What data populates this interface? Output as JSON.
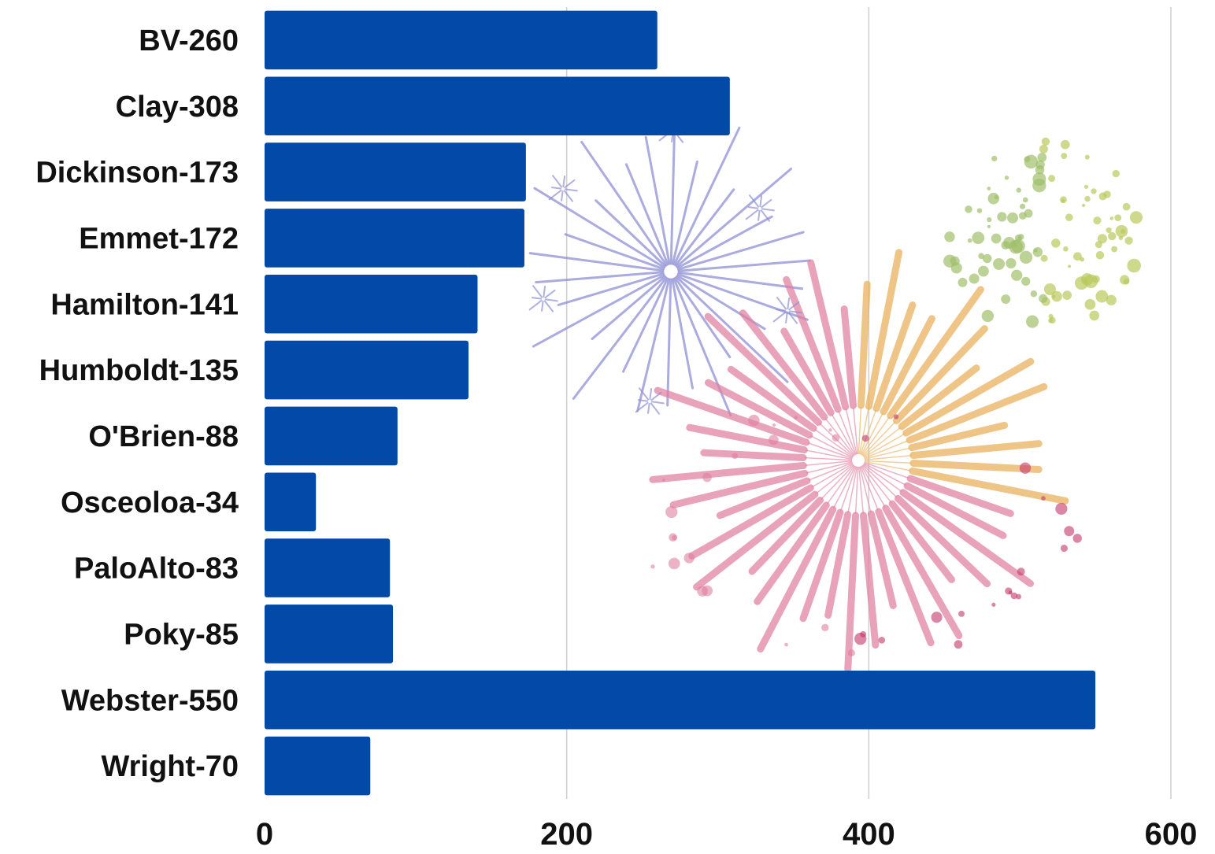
{
  "chart_data": {
    "type": "bar",
    "orientation": "horizontal",
    "categories": [
      "BV-260",
      "Clay-308",
      "Dickinson-173",
      "Emmet-172",
      "Hamilton-141",
      "Humboldt-135",
      "O'Brien-88",
      "Osceoloa-34",
      "PaloAlto-83",
      "Poky-85",
      "Webster-550",
      "Wright-70"
    ],
    "values": [
      260,
      308,
      173,
      172,
      141,
      135,
      88,
      34,
      83,
      85,
      550,
      70
    ],
    "xlim": [
      0,
      600
    ],
    "xticks": [
      "0",
      "200",
      "400",
      "600"
    ],
    "grid": "vertical",
    "bar_color": "#034aa8",
    "title": "",
    "xlabel": "",
    "ylabel": ""
  },
  "decorations": {
    "icon": "fireworks-illustration",
    "colors": [
      "#8f8fd6",
      "#e07fa0",
      "#e9b05a",
      "#b9c95a"
    ]
  }
}
